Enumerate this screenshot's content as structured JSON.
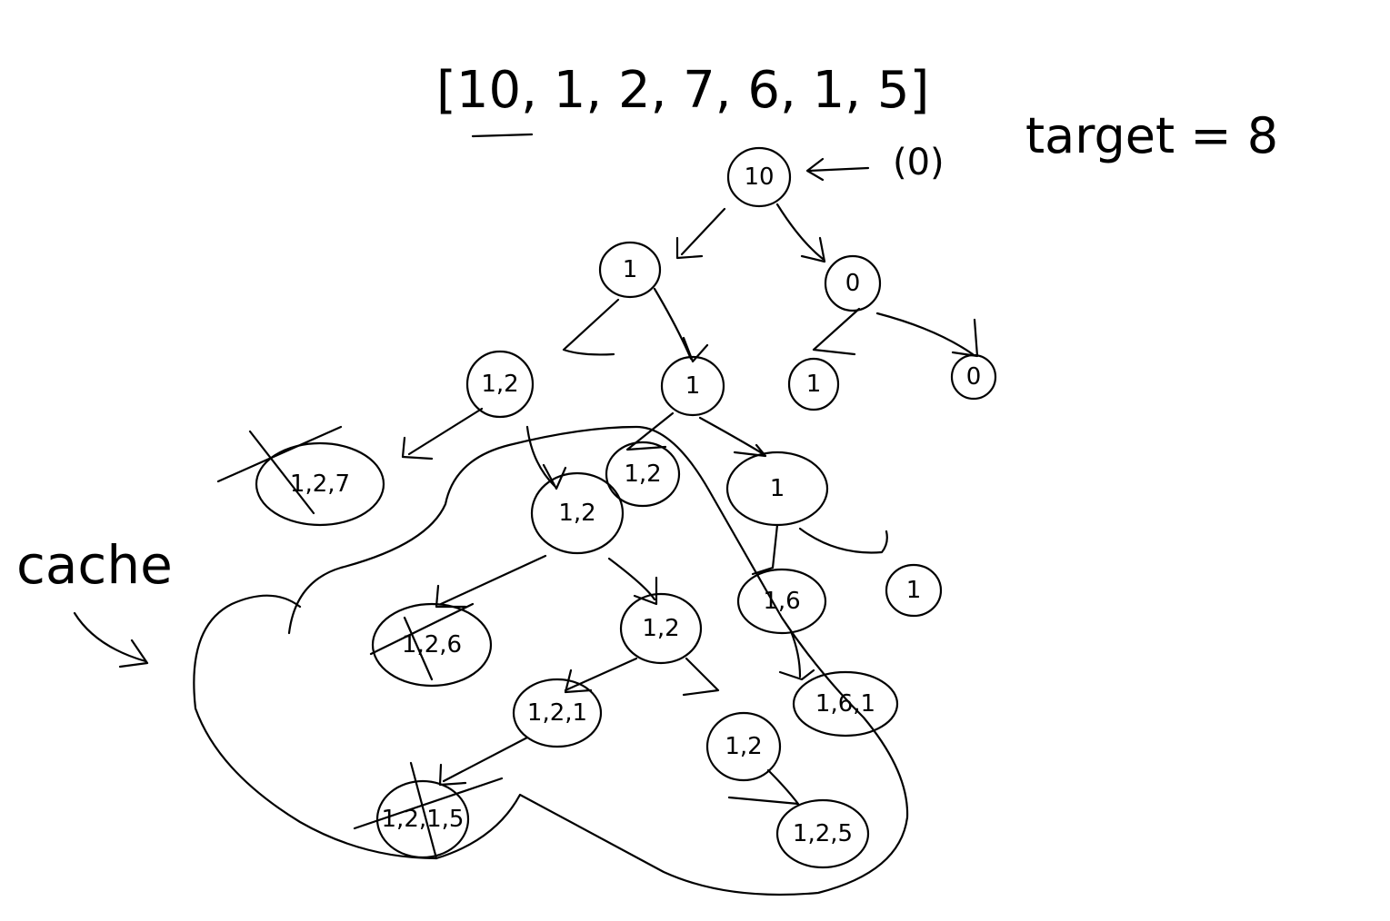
{
  "header": {
    "array_text": "[10, 1, 2, 7, 6, 1, 5]",
    "root_hint": "(0)",
    "target_text": "target = 8"
  },
  "cache": {
    "label": "cache"
  },
  "nodes": [
    {
      "id": "root",
      "label": "10",
      "crossed": false
    },
    {
      "id": "n-1",
      "label": "1",
      "crossed": false
    },
    {
      "id": "n-0a",
      "label": "0",
      "crossed": false
    },
    {
      "id": "n-1-2",
      "label": "1,2",
      "crossed": false
    },
    {
      "id": "n-1b",
      "label": "1",
      "crossed": false
    },
    {
      "id": "n-1c",
      "label": "1",
      "crossed": false
    },
    {
      "id": "n-0b",
      "label": "0",
      "crossed": false
    },
    {
      "id": "n-1-2-7",
      "label": "1,2,7",
      "crossed": true
    },
    {
      "id": "n-1-2b",
      "label": "1,2",
      "crossed": false
    },
    {
      "id": "n-1-2c",
      "label": "1,2",
      "crossed": false
    },
    {
      "id": "n-1d",
      "label": "1",
      "crossed": false
    },
    {
      "id": "n-1-6",
      "label": "1,6",
      "crossed": false
    },
    {
      "id": "n-1e",
      "label": "1",
      "crossed": false
    },
    {
      "id": "n-1-2-6",
      "label": "1,2,6",
      "crossed": true
    },
    {
      "id": "n-1-2d",
      "label": "1,2",
      "crossed": false
    },
    {
      "id": "n-1-6-1",
      "label": "1,6,1",
      "crossed": false
    },
    {
      "id": "n-1-2-1",
      "label": "1,2,1",
      "crossed": false
    },
    {
      "id": "n-1-2e",
      "label": "1,2",
      "crossed": false
    },
    {
      "id": "n-1-2-1-5",
      "label": "1,2,1,5",
      "crossed": true
    },
    {
      "id": "n-1-2-5",
      "label": "1,2,5",
      "crossed": false
    }
  ]
}
